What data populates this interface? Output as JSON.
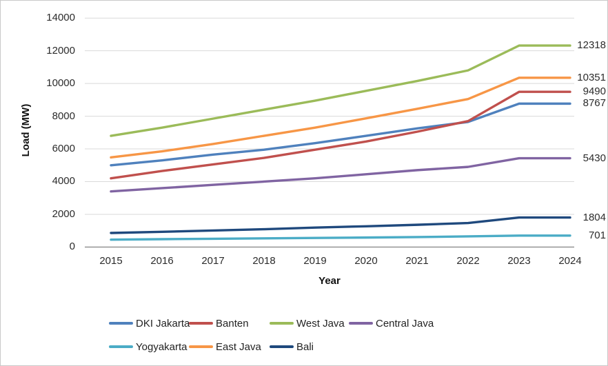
{
  "chart_data": {
    "type": "line",
    "title": "",
    "xlabel": "Year",
    "ylabel": "Load (MW)",
    "x_tick_labels": [
      "2015",
      "2016",
      "2017",
      "2018",
      "2019",
      "2020",
      "2021",
      "2022",
      "2023",
      "2024"
    ],
    "y_tick_labels": [
      "0",
      "2000",
      "4000",
      "6000",
      "8000",
      "10000",
      "12000",
      "14000"
    ],
    "ylim": [
      0,
      14000
    ],
    "y_tick_step": 2000,
    "grid": "horizontal-gridlines-on",
    "legend_position": "bottom",
    "series": [
      {
        "name": "DKI Jakarta",
        "color": "#4F81BD",
        "end_label": "8767",
        "values": [
          5000,
          5300,
          5650,
          5950,
          6350,
          6800,
          7250,
          7650,
          8767,
          8767
        ]
      },
      {
        "name": "Banten",
        "color": "#C0504D",
        "end_label": "9490",
        "values": [
          4200,
          4650,
          5050,
          5450,
          5950,
          6450,
          7050,
          7700,
          9490,
          9490
        ]
      },
      {
        "name": "West Java",
        "color": "#9BBB59",
        "end_label": "12318",
        "values": [
          6800,
          7300,
          7850,
          8400,
          8950,
          9550,
          10150,
          10800,
          12318,
          12318
        ]
      },
      {
        "name": "Central Java",
        "color": "#8064A2",
        "end_label": "5430",
        "values": [
          3400,
          3600,
          3800,
          4000,
          4200,
          4450,
          4700,
          4900,
          5430,
          5430
        ]
      },
      {
        "name": "Yogyakarta",
        "color": "#4BACC6",
        "end_label": "701",
        "values": [
          450,
          480,
          505,
          530,
          555,
          580,
          610,
          650,
          701,
          701
        ]
      },
      {
        "name": "East Java",
        "color": "#F79646",
        "end_label": "10351",
        "values": [
          5480,
          5850,
          6300,
          6800,
          7300,
          7870,
          8450,
          9050,
          10351,
          10351
        ]
      },
      {
        "name": "Bali",
        "color": "#1F497D",
        "end_label": "1804",
        "values": [
          860,
          930,
          1010,
          1090,
          1190,
          1270,
          1360,
          1470,
          1804,
          1804
        ]
      }
    ],
    "legend_rows": [
      [
        "DKI Jakarta",
        "Banten",
        "West Java",
        "Central Java"
      ],
      [
        "Yogyakarta",
        "East Java",
        "Bali"
      ]
    ],
    "colors": {
      "gridline": "#D9D9D9",
      "axis_line": "#8C8C8C",
      "tick_text": "#2B2B2B"
    }
  }
}
